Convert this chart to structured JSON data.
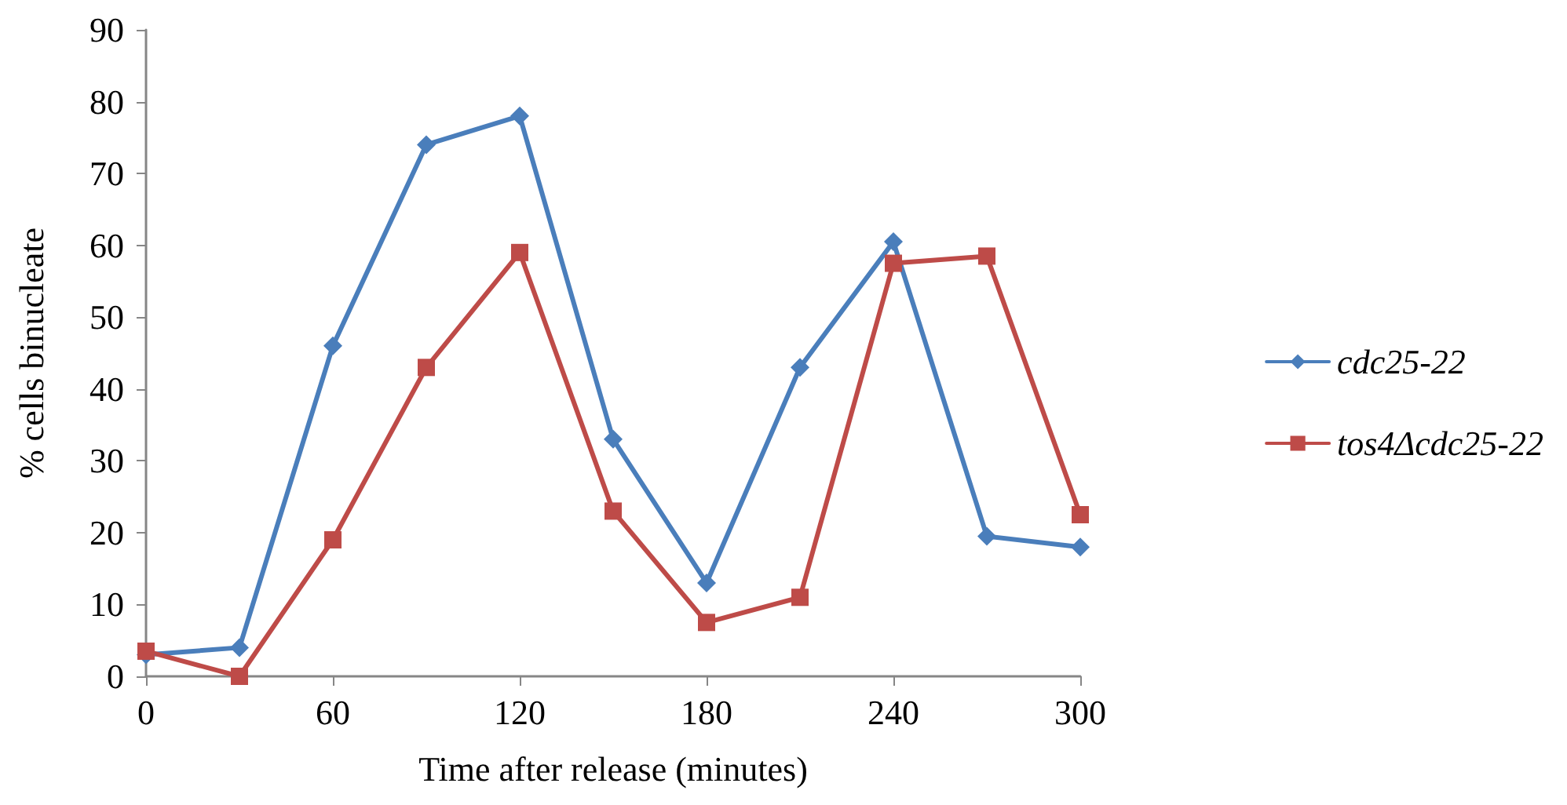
{
  "chart_data": {
    "type": "line",
    "xlabel": "Time after release (minutes)",
    "ylabel": "% cells binucleate",
    "x": [
      0,
      30,
      60,
      90,
      120,
      150,
      180,
      210,
      240,
      270,
      300
    ],
    "series": [
      {
        "name": "cdc25-22",
        "color": "#4a7ebb",
        "marker": "diamond",
        "values": [
          3,
          4,
          46,
          74,
          78,
          33,
          13,
          43,
          60.5,
          19.5,
          18
        ]
      },
      {
        "name": "tos4Δcdc25-22",
        "color": "#be4b48",
        "marker": "square",
        "values": [
          3.5,
          0,
          19,
          43,
          59,
          23,
          7.5,
          11,
          57.5,
          58.5,
          22.5
        ]
      }
    ],
    "xlim": [
      0,
      300
    ],
    "xticks": [
      0,
      60,
      120,
      180,
      240,
      300
    ],
    "ylim": [
      0,
      90
    ],
    "yticks": [
      0,
      10,
      20,
      30,
      40,
      50,
      60,
      70,
      80,
      90
    ],
    "grid": false,
    "legend": "right",
    "line_style": "solid"
  }
}
